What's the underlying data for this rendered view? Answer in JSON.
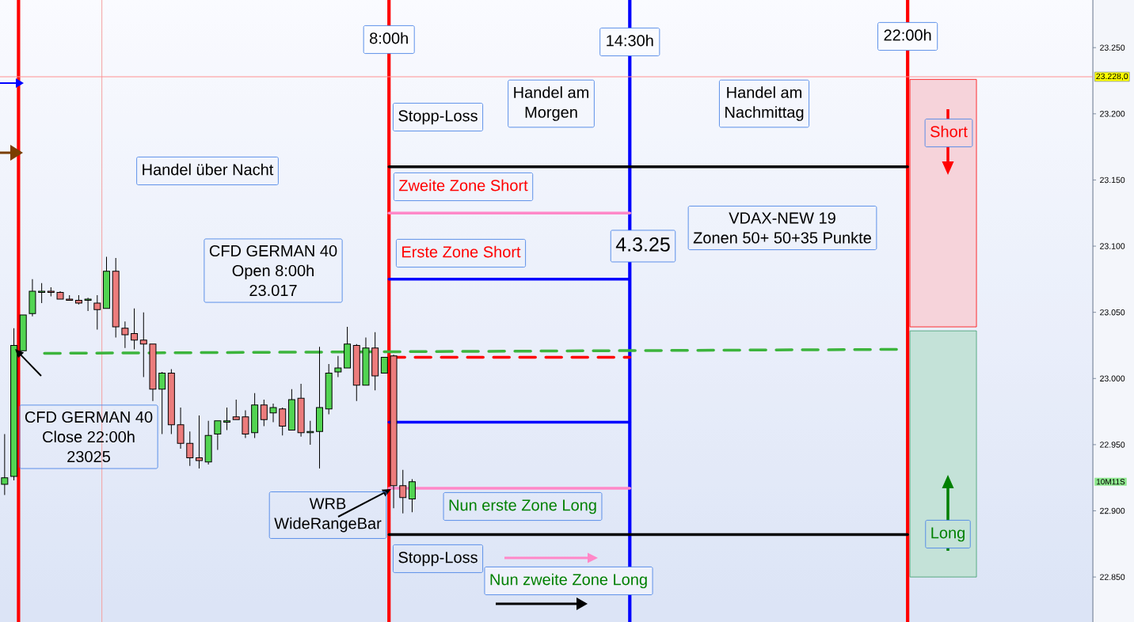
{
  "chart_data": {
    "type": "candlestick",
    "x": [
      -2.375,
      -2.125,
      -1.875,
      -1.625,
      -1.375,
      -1.125,
      -0.875,
      -0.625,
      -0.375,
      -0.125,
      0.125,
      0.375,
      0.625,
      0.875,
      1.125,
      1.375,
      1.625,
      1.875,
      2.125,
      2.375,
      2.625,
      2.875,
      3.125,
      3.375,
      3.625,
      3.875,
      4.125,
      4.375,
      4.625,
      4.875,
      5.125,
      5.375,
      5.625,
      5.875,
      6.125,
      6.375,
      6.625,
      6.875,
      7.125,
      7.375,
      7.625,
      7.875,
      8.125,
      8.375,
      8.625
    ],
    "ohlc": [
      [
        22920,
        22958,
        22912,
        22925
      ],
      [
        22926,
        23038,
        22923,
        23025
      ],
      [
        23021,
        23048,
        23021,
        23048
      ],
      [
        23049,
        23075,
        23047,
        23066
      ],
      [
        23065,
        23072,
        23057,
        23066
      ],
      [
        23066,
        23069,
        23062,
        23065
      ],
      [
        23065,
        23066,
        23060,
        23060
      ],
      [
        23060,
        23063,
        23059,
        23059
      ],
      [
        23059,
        23063,
        23056,
        23057
      ],
      [
        23059,
        23061,
        23051,
        23060
      ],
      [
        23057,
        23063,
        23037,
        23052
      ],
      [
        23053,
        23092,
        23053,
        23081
      ],
      [
        23081,
        23091,
        23031,
        23039
      ],
      [
        23038,
        23043,
        23023,
        23033
      ],
      [
        23034,
        23053,
        23022,
        23029
      ],
      [
        23029,
        23050,
        23001,
        23026
      ],
      [
        23026,
        23026,
        22983,
        22992
      ],
      [
        22992,
        23005,
        22958,
        23004
      ],
      [
        23004,
        23007,
        22958,
        22965
      ],
      [
        22965,
        22978,
        22947,
        22951
      ],
      [
        22951,
        22960,
        22934,
        22940
      ],
      [
        22940,
        22972,
        22932,
        22938
      ],
      [
        22937,
        22968,
        22935,
        22957
      ],
      [
        22958,
        22968,
        22946,
        22968
      ],
      [
        22967,
        22978,
        22961,
        22968
      ],
      [
        22971,
        22984,
        22969,
        22969
      ],
      [
        22971,
        22976,
        22955,
        22958
      ],
      [
        22959,
        22989,
        22955,
        22980
      ],
      [
        22980,
        22984,
        22964,
        22969
      ],
      [
        22974,
        22981,
        22967,
        22978
      ],
      [
        22977,
        22978,
        22957,
        22964
      ],
      [
        22961,
        22992,
        22961,
        22984
      ],
      [
        22985,
        22996,
        22956,
        22959
      ],
      [
        22959,
        22968,
        22950,
        22960
      ],
      [
        22960,
        23024,
        22932,
        22978
      ],
      [
        22977,
        23011,
        22973,
        23004
      ],
      [
        23005,
        23017,
        23001,
        23008
      ],
      [
        23008,
        23039,
        23008,
        23026
      ],
      [
        23025,
        23026,
        22983,
        22995
      ],
      [
        22995,
        23031,
        22995,
        23023
      ],
      [
        23023,
        23035,
        22991,
        23002
      ],
      [
        23004,
        23016,
        23004,
        23016
      ],
      [
        23017,
        23018,
        22902,
        22919
      ],
      [
        22919,
        22931,
        22898,
        22910
      ],
      [
        22909,
        22924,
        22899,
        22922
      ]
    ],
    "colors": [
      "#52d452",
      "#52d452",
      "#52d452",
      "#52d452",
      "#52d452",
      "#ec7c7c",
      "#ec7c7c",
      "#ec7c7c",
      "#ec7c7c",
      "#52d452",
      "#ec7c7c",
      "#52d452",
      "#ec7c7c",
      "#ec7c7c",
      "#ec7c7c",
      "#ec7c7c",
      "#ec7c7c",
      "#52d452",
      "#ec7c7c",
      "#ec7c7c",
      "#ec7c7c",
      "#ec7c7c",
      "#52d452",
      "#52d452",
      "#52d452",
      "#ec7c7c",
      "#ec7c7c",
      "#52d452",
      "#ec7c7c",
      "#52d452",
      "#ec7c7c",
      "#52d452",
      "#ec7c7c",
      "#52d452",
      "#52d452",
      "#52d452",
      "#52d452",
      "#52d452",
      "#ec7c7c",
      "#52d452",
      "#ec7c7c",
      "#52d452",
      "#ec7c7c",
      "#ec7c7c",
      "#52d452"
    ],
    "series": [
      {
        "type": "line",
        "x": [
          -1.3,
          21.7
        ],
        "values": [
          23019,
          23022
        ],
        "color": "#3cb43c",
        "line_style": "dashed"
      },
      {
        "type": "line",
        "x": [
          8,
          22
        ],
        "values": [
          23160,
          23160
        ],
        "color": "#000000"
      },
      {
        "type": "line",
        "x": [
          8,
          14.5
        ],
        "values": [
          23125,
          23125
        ],
        "color": "#ff88c8"
      },
      {
        "type": "line",
        "x": [
          8,
          14.5
        ],
        "values": [
          23075,
          23075
        ],
        "color": "#0000ff"
      },
      {
        "type": "line",
        "x": [
          8,
          14.5
        ],
        "values": [
          23016,
          23016
        ],
        "color": "#ff0000",
        "line_style": "dashed"
      },
      {
        "type": "line",
        "x": [
          8,
          14.5
        ],
        "values": [
          22967,
          22967
        ],
        "color": "#0000ff"
      },
      {
        "type": "line",
        "x": [
          8,
          14.5
        ],
        "values": [
          22917,
          22917
        ],
        "color": "#ff88c8"
      },
      {
        "type": "line",
        "x": [
          8,
          22
        ],
        "values": [
          22882,
          22882
        ],
        "color": "#000000"
      }
    ],
    "xlim": [
      -2.5,
      27
    ],
    "ylim": [
      22816,
      23286
    ],
    "yticks": [
      {
        "value": 22850,
        "label": "22.850"
      },
      {
        "value": 22900,
        "label": "22.900"
      },
      {
        "value": 22950,
        "label": "22.950"
      },
      {
        "value": 23000,
        "label": "23.000"
      },
      {
        "value": 23050,
        "label": "23.050"
      },
      {
        "value": 23100,
        "label": "23.100"
      },
      {
        "value": 23150,
        "label": "23.150"
      },
      {
        "value": 23200,
        "label": "23.200"
      },
      {
        "value": 23250,
        "label": "23.250"
      }
    ],
    "tick_labels": "y",
    "ref_lines": [
      {
        "axis": "x",
        "value": -2,
        "color": "#ff0000"
      },
      {
        "axis": "x",
        "value": 8,
        "label": "8:00h",
        "color": "#ff0000"
      },
      {
        "axis": "x",
        "value": 14.5,
        "label": "14:30h",
        "color": "#0000ff"
      },
      {
        "axis": "x",
        "value": 22,
        "label": "22:00h",
        "color": "#ff0000"
      },
      {
        "axis": "x",
        "value": 0.25,
        "color": "#f4a0a0"
      },
      {
        "axis": "y",
        "value": 23228,
        "label": "23.228,0",
        "color": "#ff9090"
      }
    ],
    "bands": [
      {
        "axis": "y",
        "from": 23039,
        "to": 23226,
        "label": "Short",
        "color": "#f6d3da"
      },
      {
        "axis": "y",
        "from": 22850,
        "to": 23036,
        "label": "Long",
        "color": "#c4e2d8"
      }
    ],
    "annotations": [
      "Handel über Nacht",
      "CFD GERMAN 40",
      "Open 8:00h",
      "23.017",
      "CFD GERMAN 40",
      "Close 22:00h",
      "23025",
      "WRB",
      "WideRangeBar",
      "Stopp-Loss",
      "Zweite Zone Short",
      "Erste Zone Short",
      "Handel am",
      "Morgen",
      "Handel am",
      "Nachmittag",
      "4.3.25",
      "VDAX-NEW 19",
      "Zonen 50+ 50+35 Punkte",
      "Nun erste Zone Long",
      "Stopp-Loss",
      "Nun zweite Zone Long",
      "10M11S"
    ]
  }
}
